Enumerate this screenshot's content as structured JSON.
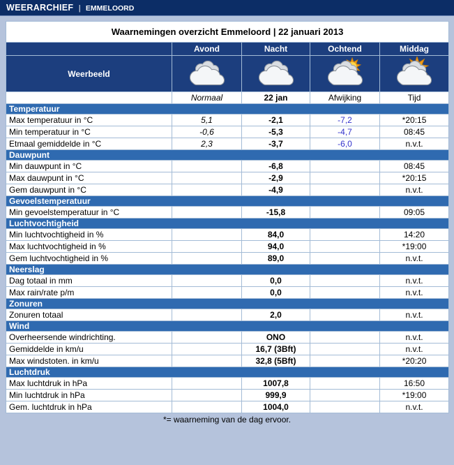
{
  "topbar": {
    "title": "WEERARCHIEF",
    "separator": "|",
    "location": "EMMELOORD"
  },
  "table": {
    "title": "Waarnemingen overzicht Emmeloord | 22 januari 2013",
    "weerbeeld_label": "Weerbeeld",
    "columns": [
      "Avond",
      "Nacht",
      "Ochtend",
      "Middag"
    ],
    "subcolumns": [
      "Normaal",
      "22 jan",
      "Afwijking",
      "Tijd"
    ],
    "icons": [
      {
        "name": "clouds-icon",
        "type": "cloudy",
        "column": "Avond"
      },
      {
        "name": "clouds-icon",
        "type": "cloudy",
        "column": "Nacht"
      },
      {
        "name": "sun-behind-clouds-icon",
        "type": "sun-cloud",
        "column": "Ochtend"
      },
      {
        "name": "sun-behind-clouds-icon",
        "type": "sun-cloud-bright",
        "column": "Middag"
      }
    ],
    "sections": [
      {
        "header": "Temperatuur",
        "rows": [
          {
            "label": "Max temperatuur in °C",
            "normaal": "5,1",
            "value": "-2,1",
            "afwijking": "-7,2",
            "tijd": "*20:15"
          },
          {
            "label": "Min temperatuur in °C",
            "normaal": "-0,6",
            "value": "-5,3",
            "afwijking": "-4,7",
            "tijd": "08:45"
          },
          {
            "label": "Etmaal gemiddelde in °C",
            "normaal": "2,3",
            "value": "-3,7",
            "afwijking": "-6,0",
            "tijd": "n.v.t."
          }
        ]
      },
      {
        "header": "Dauwpunt",
        "rows": [
          {
            "label": "Min dauwpunt in °C",
            "normaal": "",
            "value": "-6,8",
            "afwijking": "",
            "tijd": "08:45"
          },
          {
            "label": "Max dauwpunt in °C",
            "normaal": "",
            "value": "-2,9",
            "afwijking": "",
            "tijd": "*20:15"
          },
          {
            "label": "Gem dauwpunt in °C",
            "normaal": "",
            "value": "-4,9",
            "afwijking": "",
            "tijd": "n.v.t."
          }
        ]
      },
      {
        "header": "Gevoelstemperatuur",
        "rows": [
          {
            "label": "Min gevoelstemperatuur in °C",
            "normaal": "",
            "value": "-15,8",
            "afwijking": "",
            "tijd": "09:05"
          }
        ]
      },
      {
        "header": "Luchtvochtigheid",
        "rows": [
          {
            "label": "Min luchtvochtigheid in %",
            "normaal": "",
            "value": "84,0",
            "afwijking": "",
            "tijd": "14:20"
          },
          {
            "label": "Max luchtvochtigheid in %",
            "normaal": "",
            "value": "94,0",
            "afwijking": "",
            "tijd": "*19:00"
          },
          {
            "label": "Gem luchtvochtigheid in %",
            "normaal": "",
            "value": "89,0",
            "afwijking": "",
            "tijd": "n.v.t."
          }
        ]
      },
      {
        "header": "Neerslag",
        "rows": [
          {
            "label": "Dag totaal in mm",
            "normaal": "",
            "value": "0,0",
            "afwijking": "",
            "tijd": "n.v.t."
          },
          {
            "label": "Max rain/rate p/m",
            "normaal": "",
            "value": "0,0",
            "afwijking": "",
            "tijd": "n.v.t."
          }
        ]
      },
      {
        "header": "Zonuren",
        "rows": [
          {
            "label": "Zonuren totaal",
            "normaal": "",
            "value": "2,0",
            "afwijking": "",
            "tijd": "n.v.t."
          }
        ]
      },
      {
        "header": "Wind",
        "rows": [
          {
            "label": "Overheersende windrichting.",
            "normaal": "",
            "value": "ONO",
            "afwijking": "",
            "tijd": "n.v.t."
          },
          {
            "label": "Gemiddelde in km/u",
            "normaal": "",
            "value": "16,7 (3Bft)",
            "afwijking": "",
            "tijd": "n.v.t."
          },
          {
            "label": "Max windstoten. in km/u",
            "normaal": "",
            "value": "32,8 (5Bft)",
            "afwijking": "",
            "tijd": "*20:20"
          }
        ]
      },
      {
        "header": "Luchtdruk",
        "rows": [
          {
            "label": "Max luchtdruk in hPa",
            "normaal": "",
            "value": "1007,8",
            "afwijking": "",
            "tijd": "16:50"
          },
          {
            "label": "Min luchtdruk in hPa",
            "normaal": "",
            "value": "999,9",
            "afwijking": "",
            "tijd": "*19:00"
          },
          {
            "label": "Gem. luchtdruk in hPa",
            "normaal": "",
            "value": "1004,0",
            "afwijking": "",
            "tijd": "n.v.t."
          }
        ]
      }
    ]
  },
  "footnote": "*= waarneming van de dag ervoor.",
  "colors": {
    "page_bg": "#b5c3dc",
    "topbar_bg": "#0c2d66",
    "header_bg": "#1c3e7e",
    "section_bg": "#2f6ab0",
    "table_border": "#3c5f95",
    "grid_line": "#a3bbd6",
    "afwijking_text": "#3333cc",
    "sun": "#f29b1d",
    "cloud": "#f4f6f8"
  }
}
